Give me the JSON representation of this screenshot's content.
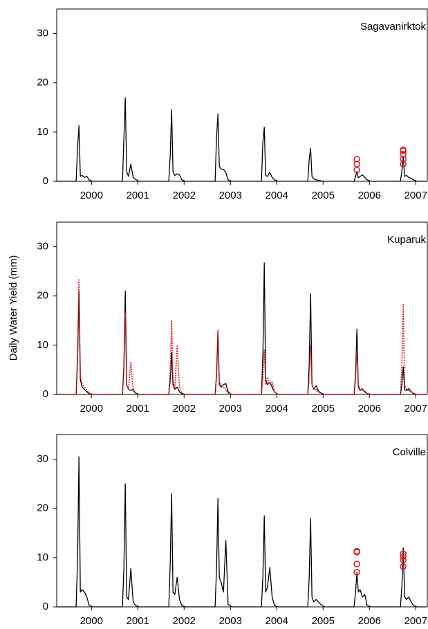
{
  "chart_data": [
    {
      "type": "line",
      "annotation": "Sagavanirktok",
      "xlim": [
        2000,
        2008
      ],
      "ylim": [
        0,
        35
      ],
      "yticks": [
        0,
        10,
        20,
        30
      ],
      "xticks": [
        {
          "value": 2000.75,
          "label": "2000"
        },
        {
          "value": 2001.75,
          "label": "2001"
        },
        {
          "value": 2002.75,
          "label": "2002"
        },
        {
          "value": 2003.75,
          "label": "2003"
        },
        {
          "value": 2004.75,
          "label": "2004"
        },
        {
          "value": 2005.75,
          "label": "2005"
        },
        {
          "value": 2006.75,
          "label": "2006"
        },
        {
          "value": 2007.75,
          "label": "2007"
        }
      ],
      "x": [
        2000,
        2000.42,
        2000.45,
        2000.48,
        2000.51,
        2000.55,
        2000.6,
        2000.65,
        2000.7,
        2000.78,
        2001,
        2001.42,
        2001.45,
        2001.48,
        2001.51,
        2001.55,
        2001.6,
        2001.65,
        2001.7,
        2001.78,
        2002,
        2002.42,
        2002.45,
        2002.48,
        2002.51,
        2002.55,
        2002.6,
        2002.65,
        2002.7,
        2002.78,
        2003,
        2003.42,
        2003.45,
        2003.48,
        2003.51,
        2003.55,
        2003.6,
        2003.65,
        2003.7,
        2003.78,
        2004,
        2004.42,
        2004.45,
        2004.48,
        2004.51,
        2004.55,
        2004.6,
        2004.65,
        2004.7,
        2004.78,
        2005,
        2005.42,
        2005.45,
        2005.48,
        2005.51,
        2005.55,
        2005.6,
        2005.65,
        2005.7,
        2005.78,
        2006,
        2006.42,
        2006.45,
        2006.48,
        2006.51,
        2006.55,
        2006.6,
        2006.65,
        2006.7,
        2006.78,
        2007,
        2007.42,
        2007.45,
        2007.48,
        2007.51,
        2007.55,
        2007.6,
        2007.65,
        2007.7,
        2007.78,
        2008
      ],
      "series": [
        {
          "type": "line",
          "color": "#000000",
          "values": [
            0,
            0,
            6.8,
            11.3,
            1,
            1.2,
            0.8,
            1,
            0.3,
            0,
            0,
            0,
            8.7,
            17,
            2,
            1,
            3.5,
            0.8,
            0.4,
            0,
            0,
            0,
            5.3,
            14.5,
            2,
            1.2,
            1.5,
            1.3,
            0.3,
            0,
            0,
            0,
            9,
            13.7,
            3,
            2.5,
            2.4,
            1.8,
            0.3,
            0,
            0,
            0,
            8,
            11,
            1.2,
            1,
            1.8,
            0.8,
            0.3,
            0,
            0,
            0,
            4.4,
            6.7,
            1,
            0.5,
            0.3,
            0.2,
            0.1,
            0,
            0,
            0,
            1,
            2,
            0.7,
            1,
            1.3,
            0.8,
            0.3,
            0,
            0,
            0,
            2,
            5,
            1,
            1.2,
            0.8,
            0.6,
            0.3,
            0,
            0
          ]
        },
        {
          "type": "scatter",
          "color": "#e0191e",
          "x": [
            2006.48,
            2006.48,
            2006.48,
            2007.48,
            2007.48,
            2007.48,
            2007.48,
            2007.48
          ],
          "values": [
            4.5,
            3.5,
            2.3,
            6.4,
            6.2,
            5.5,
            4.5,
            3.5
          ]
        }
      ]
    },
    {
      "type": "line",
      "annotation": "Kuparuk",
      "ylabel": "Daily Water Yield (mm)",
      "xlim": [
        2000,
        2008
      ],
      "ylim": [
        0,
        35
      ],
      "yticks": [
        0,
        10,
        20,
        30
      ],
      "xticks": [
        {
          "value": 2000.75,
          "label": "2000"
        },
        {
          "value": 2001.75,
          "label": "2001"
        },
        {
          "value": 2002.75,
          "label": "2002"
        },
        {
          "value": 2003.75,
          "label": "2003"
        },
        {
          "value": 2004.75,
          "label": "2004"
        },
        {
          "value": 2005.75,
          "label": "2005"
        },
        {
          "value": 2006.75,
          "label": "2006"
        },
        {
          "value": 2007.75,
          "label": "2007"
        }
      ],
      "x": [
        2000,
        2000.42,
        2000.45,
        2000.48,
        2000.51,
        2000.55,
        2000.6,
        2000.65,
        2000.7,
        2000.78,
        2001,
        2001.42,
        2001.45,
        2001.48,
        2001.51,
        2001.55,
        2001.6,
        2001.65,
        2001.7,
        2001.78,
        2002,
        2002.42,
        2002.45,
        2002.48,
        2002.51,
        2002.55,
        2002.6,
        2002.65,
        2002.7,
        2002.78,
        2003,
        2003.42,
        2003.45,
        2003.48,
        2003.51,
        2003.55,
        2003.6,
        2003.65,
        2003.7,
        2003.78,
        2004,
        2004.42,
        2004.45,
        2004.48,
        2004.51,
        2004.55,
        2004.6,
        2004.65,
        2004.7,
        2004.78,
        2005,
        2005.42,
        2005.45,
        2005.48,
        2005.51,
        2005.55,
        2005.6,
        2005.65,
        2005.7,
        2005.78,
        2006,
        2006.42,
        2006.45,
        2006.48,
        2006.51,
        2006.55,
        2006.6,
        2006.65,
        2006.7,
        2006.78,
        2007,
        2007.42,
        2007.45,
        2007.48,
        2007.51,
        2007.55,
        2007.6,
        2007.65,
        2007.7,
        2007.78,
        2008
      ],
      "series": [
        {
          "type": "line",
          "color": "#000000",
          "values": [
            0,
            0,
            7,
            21,
            3,
            1.5,
            1,
            0.5,
            0.2,
            0,
            0,
            0,
            6,
            21,
            2,
            1,
            0.8,
            1,
            0.3,
            0,
            0,
            0,
            3,
            8.5,
            2,
            1,
            1.5,
            0.5,
            0.2,
            0,
            0,
            0,
            4,
            13,
            2,
            1.5,
            2,
            2.2,
            0.5,
            0,
            0,
            0,
            8,
            26.7,
            3,
            2,
            2.5,
            1.5,
            0.5,
            0,
            0,
            0,
            6,
            20.5,
            2,
            1,
            1.8,
            0.7,
            0.3,
            0,
            0,
            0,
            4,
            13.3,
            1.5,
            0.8,
            1,
            0.5,
            0.2,
            0,
            0,
            0,
            2,
            5.6,
            1,
            0.8,
            1.2,
            0.6,
            0.2,
            0,
            0
          ]
        },
        {
          "type": "line",
          "dashed": true,
          "color": "#e0191e",
          "values": [
            0,
            0,
            8,
            23.5,
            4,
            2,
            1.5,
            0.8,
            0.3,
            0,
            0,
            0,
            5,
            16.5,
            2,
            1,
            6.5,
            0.8,
            0.2,
            0,
            0,
            0,
            5,
            15,
            3,
            1,
            10,
            1.5,
            0.3,
            0,
            0,
            0,
            4,
            13,
            2.5,
            2,
            1.5,
            1,
            0.3,
            0,
            0,
            0,
            3,
            9,
            2,
            3.5,
            2,
            2.5,
            0.5,
            0,
            0,
            0,
            3,
            10,
            2,
            1,
            1,
            0.5,
            0.2,
            0,
            0,
            0,
            3,
            9,
            2,
            1,
            1.2,
            0.7,
            0.2,
            0,
            0,
            0,
            6,
            18.5,
            2,
            1,
            0.8,
            0.5,
            0.2,
            0,
            0
          ]
        }
      ]
    },
    {
      "type": "line",
      "annotation": "Colville",
      "xlim": [
        2000,
        2008
      ],
      "ylim": [
        0,
        35
      ],
      "yticks": [
        0,
        10,
        20,
        30
      ],
      "xticks": [
        {
          "value": 2000.75,
          "label": "2000"
        },
        {
          "value": 2001.75,
          "label": "2001"
        },
        {
          "value": 2002.75,
          "label": "2002"
        },
        {
          "value": 2003.75,
          "label": "2003"
        },
        {
          "value": 2004.75,
          "label": "2004"
        },
        {
          "value": 2005.75,
          "label": "2005"
        },
        {
          "value": 2006.75,
          "label": "2006"
        },
        {
          "value": 2007.75,
          "label": "2007"
        }
      ],
      "x": [
        2000,
        2000.42,
        2000.45,
        2000.48,
        2000.51,
        2000.55,
        2000.6,
        2000.65,
        2000.7,
        2000.78,
        2001,
        2001.42,
        2001.45,
        2001.48,
        2001.51,
        2001.55,
        2001.6,
        2001.65,
        2001.7,
        2001.78,
        2002,
        2002.42,
        2002.45,
        2002.48,
        2002.51,
        2002.55,
        2002.6,
        2002.65,
        2002.7,
        2002.78,
        2003,
        2003.42,
        2003.45,
        2003.48,
        2003.51,
        2003.55,
        2003.6,
        2003.65,
        2003.7,
        2003.78,
        2004,
        2004.42,
        2004.45,
        2004.48,
        2004.51,
        2004.55,
        2004.6,
        2004.65,
        2004.7,
        2004.78,
        2005,
        2005.42,
        2005.45,
        2005.48,
        2005.51,
        2005.55,
        2005.6,
        2005.65,
        2005.7,
        2005.78,
        2006,
        2006.42,
        2006.45,
        2006.48,
        2006.51,
        2006.55,
        2006.6,
        2006.65,
        2006.7,
        2006.78,
        2007,
        2007.42,
        2007.45,
        2007.48,
        2007.51,
        2007.55,
        2007.6,
        2007.65,
        2007.7,
        2007.78,
        2008
      ],
      "series": [
        {
          "type": "line",
          "color": "#000000",
          "values": [
            0,
            0,
            10,
            30.5,
            3,
            3.5,
            3,
            2,
            0.3,
            0,
            0,
            0,
            8,
            25,
            2,
            1.5,
            7.8,
            1,
            0.3,
            0,
            0,
            0,
            9,
            23,
            3,
            2.5,
            6,
            1.5,
            0.3,
            0,
            0,
            0,
            8,
            22,
            6,
            5,
            3,
            13.5,
            0.5,
            0,
            0,
            0,
            6,
            18.5,
            3,
            4,
            8,
            2,
            0.3,
            0,
            0,
            0,
            6,
            18,
            2,
            1,
            1.5,
            1,
            0.5,
            0,
            0,
            0,
            3,
            7,
            3,
            3.5,
            2,
            2.5,
            0.3,
            0,
            0,
            0,
            4,
            12,
            2,
            1.5,
            2,
            1,
            0.3,
            0,
            0
          ]
        },
        {
          "type": "scatter",
          "color": "#e0191e",
          "x": [
            2006.48,
            2006.48,
            2006.48,
            2006.48,
            2007.48,
            2007.48,
            2007.48,
            2007.48
          ],
          "values": [
            11.3,
            11.1,
            8.7,
            7,
            10.8,
            10.3,
            9.5,
            8.2
          ]
        }
      ]
    }
  ]
}
